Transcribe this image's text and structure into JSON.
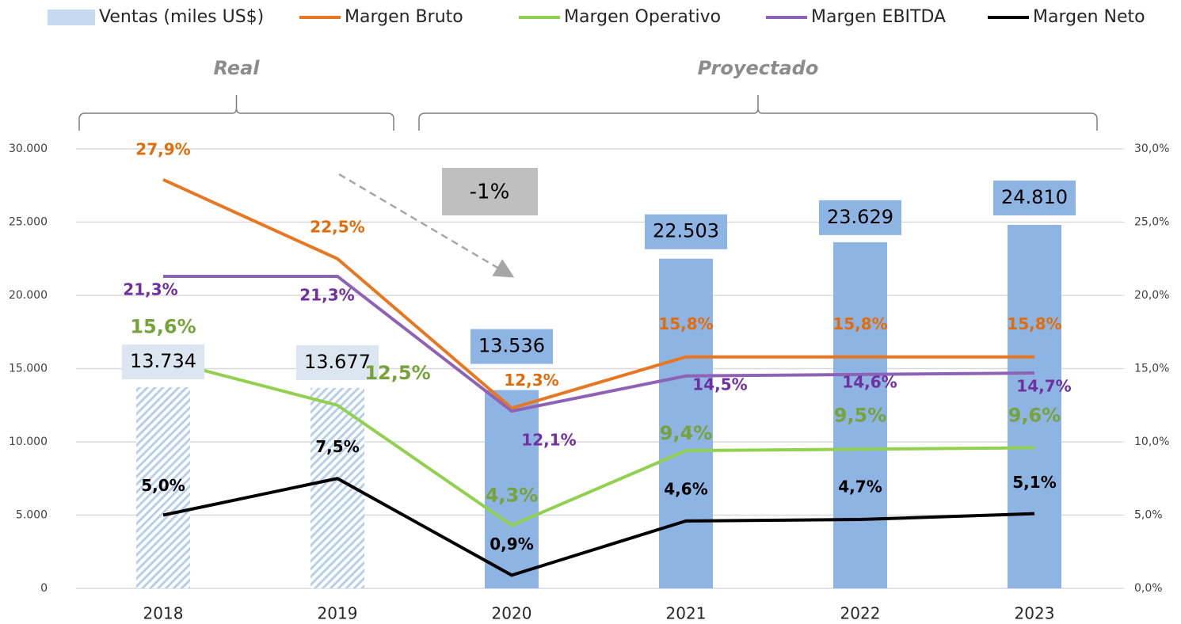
{
  "chart_data": {
    "type": "combo",
    "categories": [
      "2018",
      "2019",
      "2020",
      "2021",
      "2022",
      "2023"
    ],
    "series": [
      {
        "name": "Ventas (miles US$)",
        "kind": "bar",
        "color": "#8eb4e3",
        "values": [
          13734,
          13677,
          13536,
          22503,
          23629,
          24810
        ],
        "value_labels": [
          "13.734",
          "13.677",
          "13.536",
          "22.503",
          "23.629",
          "24.810"
        ]
      },
      {
        "name": "Margen Bruto",
        "kind": "line",
        "axis": "y2",
        "color": "#e87722",
        "label_color": "#e36c0a",
        "values": [
          27.9,
          22.5,
          12.3,
          15.8,
          15.8,
          15.8
        ],
        "value_labels": [
          "27,9%",
          "22,5%",
          "12,3%",
          "15,8%",
          "15,8%",
          "15,8%"
        ]
      },
      {
        "name": "Margen Operativo",
        "kind": "line",
        "axis": "y2",
        "color": "#92d050",
        "label_color": "#76a33a",
        "values": [
          15.6,
          12.5,
          4.3,
          9.4,
          9.5,
          9.6
        ],
        "value_labels": [
          "15,6%",
          "12,5%",
          "4,3%",
          "9,4%",
          "9,5%",
          "9,6%"
        ]
      },
      {
        "name": "Margen EBITDA",
        "kind": "line",
        "axis": "y2",
        "color": "#8e63b5",
        "label_color": "#7030a0",
        "values": [
          21.3,
          21.3,
          12.1,
          14.5,
          14.6,
          14.7
        ],
        "value_labels": [
          "21,3%",
          "21,3%",
          "12,1%",
          "14,5%",
          "14,6%",
          "14,7%"
        ]
      },
      {
        "name": "Margen Neto",
        "kind": "line",
        "axis": "y2",
        "color": "#000000",
        "label_color": "#000000",
        "values": [
          5.0,
          7.5,
          0.9,
          4.6,
          4.7,
          5.1
        ],
        "value_labels": [
          "5,0%",
          "7,5%",
          "0,9%",
          "4,6%",
          "4,7%",
          "5,1%"
        ]
      }
    ],
    "groups": [
      {
        "label": "Real",
        "from": "2018",
        "to": "2019",
        "fill": "hatch"
      },
      {
        "label": "Proyectado",
        "from": "2020",
        "to": "2023",
        "fill": "solid"
      }
    ],
    "annotation": "-1%",
    "ylim": [
      0,
      30000
    ],
    "yticks": [
      0,
      {
        "value": 5000,
        "label": "5.000"
      },
      {
        "value": 10000,
        "label": "10.000"
      },
      {
        "value": 15000,
        "label": "15.000"
      },
      {
        "value": 20000,
        "label": "20.000"
      },
      {
        "value": 25000,
        "label": "25.000"
      },
      {
        "value": 30000,
        "label": "30.000"
      }
    ],
    "y2lim": [
      0,
      30
    ],
    "y2ticks": [
      {
        "value": 0,
        "label": "0,0%"
      },
      {
        "value": 5,
        "label": "5,0%"
      },
      {
        "value": 10,
        "label": "10,0%"
      },
      {
        "value": 15,
        "label": "15,0%"
      },
      {
        "value": 20,
        "label": "20,0%"
      },
      {
        "value": 25,
        "label": "25,0%"
      },
      {
        "value": 30,
        "label": "30,0%"
      }
    ],
    "grid": true,
    "legend": "top"
  }
}
